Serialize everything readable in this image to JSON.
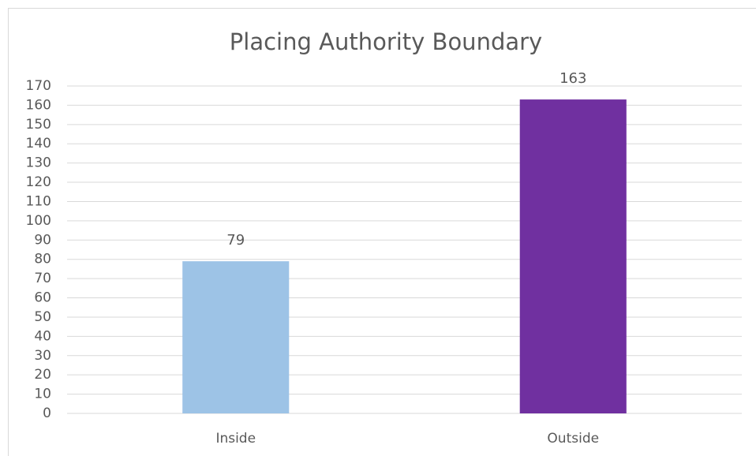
{
  "chart_data": {
    "type": "bar",
    "title": "Placing Authority Boundary",
    "categories": [
      "Inside",
      "Outside"
    ],
    "values": [
      79,
      163
    ],
    "colors": [
      "#9dc3e6",
      "#7030a0"
    ],
    "ylim": [
      0,
      170
    ],
    "yticks": [
      0,
      10,
      20,
      30,
      40,
      50,
      60,
      70,
      80,
      90,
      100,
      110,
      120,
      130,
      140,
      150,
      160,
      170
    ],
    "grid": true
  }
}
